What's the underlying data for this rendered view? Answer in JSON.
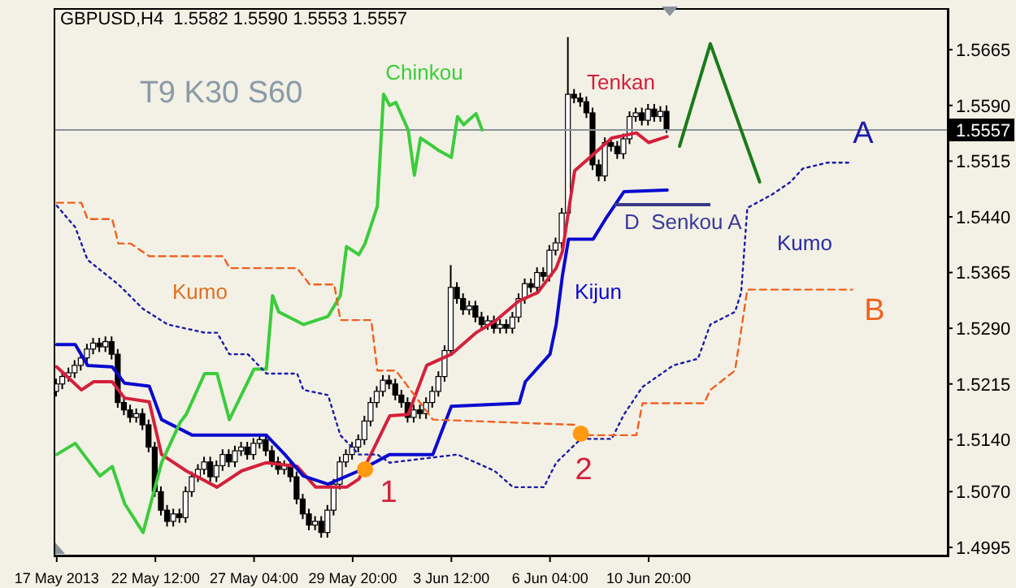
{
  "chart_data": {
    "type": "candlestick",
    "title": "GBPUSD,H4  1.5582 1.5590 1.5553 1.5557",
    "categories": [
      "17 May 2013",
      null,
      null,
      null,
      null,
      null,
      null,
      null,
      null,
      null,
      null,
      null,
      null,
      null,
      null,
      null,
      "22 May 12:00",
      null,
      null,
      null,
      null,
      null,
      null,
      null,
      null,
      null,
      null,
      null,
      null,
      null,
      null,
      null,
      "27 May 04:00",
      null,
      null,
      null,
      null,
      null,
      null,
      null,
      null,
      null,
      null,
      null,
      null,
      null,
      null,
      null,
      "29 May 20:00",
      null,
      null,
      null,
      null,
      null,
      null,
      null,
      null,
      null,
      null,
      null,
      null,
      null,
      null,
      null,
      "3 Jun 12:00",
      null,
      null,
      null,
      null,
      null,
      null,
      null,
      null,
      null,
      null,
      null,
      null,
      null,
      null,
      null,
      "6 Jun 04:00",
      null,
      null,
      null,
      null,
      null,
      null,
      null,
      null,
      null,
      null,
      null,
      null,
      null,
      null,
      null,
      "10 Jun 20:00",
      null,
      null,
      null,
      null,
      null,
      null,
      null,
      null,
      null,
      null,
      null,
      null,
      null,
      null,
      null,
      null,
      null,
      null,
      null,
      null,
      null,
      null,
      null,
      null,
      null,
      null,
      null,
      null,
      null,
      null,
      null,
      null,
      null,
      null,
      null,
      null,
      null,
      null,
      null,
      null,
      null,
      null,
      null,
      null,
      null,
      null,
      null,
      null
    ],
    "ohlc": [
      [
        1.5205,
        1.5222,
        1.5198,
        1.5215
      ],
      [
        1.5215,
        1.5232,
        1.5208,
        1.5225
      ],
      [
        1.5225,
        1.5237,
        1.5218,
        1.523
      ],
      [
        1.523,
        1.5247,
        1.5223,
        1.524
      ],
      [
        1.524,
        1.5257,
        1.5233,
        1.525
      ],
      [
        1.525,
        1.5269,
        1.5243,
        1.5262
      ],
      [
        1.5262,
        1.5277,
        1.5255,
        1.527
      ],
      [
        1.527,
        1.5277,
        1.5258,
        1.5265
      ],
      [
        1.5265,
        1.5279,
        1.5258,
        1.5272
      ],
      [
        1.5272,
        1.5279,
        1.5248,
        1.5255
      ],
      [
        1.5255,
        1.5262,
        1.5183,
        1.519
      ],
      [
        1.519,
        1.5197,
        1.5173,
        1.518
      ],
      [
        1.518,
        1.5187,
        1.5163,
        1.517
      ],
      [
        1.517,
        1.5182,
        1.5163,
        1.5175
      ],
      [
        1.5175,
        1.5182,
        1.5153,
        1.516
      ],
      [
        1.516,
        1.5167,
        1.5123,
        1.513
      ],
      [
        1.513,
        1.5137,
        1.5063,
        1.507
      ],
      [
        1.507,
        1.5077,
        1.5038,
        1.5045
      ],
      [
        1.5045,
        1.5052,
        1.5023,
        1.503
      ],
      [
        1.503,
        1.5047,
        1.5023,
        1.504
      ],
      [
        1.504,
        1.5047,
        1.5028,
        1.5035
      ],
      [
        1.5035,
        1.5077,
        1.5028,
        1.507
      ],
      [
        1.507,
        1.5097,
        1.5063,
        1.509
      ],
      [
        1.509,
        1.5107,
        1.5083,
        1.51
      ],
      [
        1.51,
        1.5117,
        1.5093,
        1.511
      ],
      [
        1.511,
        1.5117,
        1.5083,
        1.509
      ],
      [
        1.509,
        1.5112,
        1.5083,
        1.5105
      ],
      [
        1.5105,
        1.5127,
        1.5098,
        1.512
      ],
      [
        1.512,
        1.5127,
        1.5103,
        1.511
      ],
      [
        1.511,
        1.5132,
        1.5103,
        1.5125
      ],
      [
        1.5125,
        1.5137,
        1.5118,
        1.513
      ],
      [
        1.513,
        1.5137,
        1.5113,
        1.512
      ],
      [
        1.512,
        1.5142,
        1.5113,
        1.5135
      ],
      [
        1.5135,
        1.5147,
        1.5128,
        1.514
      ],
      [
        1.514,
        1.5147,
        1.5118,
        1.5125
      ],
      [
        1.5125,
        1.5132,
        1.5103,
        1.511
      ],
      [
        1.511,
        1.5117,
        1.5093,
        1.51
      ],
      [
        1.51,
        1.5112,
        1.5093,
        1.5105
      ],
      [
        1.5105,
        1.5112,
        1.5083,
        1.509
      ],
      [
        1.509,
        1.5097,
        1.5053,
        1.506
      ],
      [
        1.506,
        1.5067,
        1.5033,
        1.504
      ],
      [
        1.504,
        1.5047,
        1.5018,
        1.5025
      ],
      [
        1.5025,
        1.5037,
        1.5018,
        1.503
      ],
      [
        1.503,
        1.5037,
        1.5008,
        1.5015
      ],
      [
        1.5015,
        1.5052,
        1.5008,
        1.5045
      ],
      [
        1.5045,
        1.5087,
        1.5038,
        1.508
      ],
      [
        1.508,
        1.5117,
        1.5073,
        1.511
      ],
      [
        1.511,
        1.5127,
        1.5103,
        1.512
      ],
      [
        1.512,
        1.5137,
        1.5113,
        1.513
      ],
      [
        1.513,
        1.5147,
        1.5123,
        1.514
      ],
      [
        1.514,
        1.5172,
        1.5133,
        1.5165
      ],
      [
        1.5165,
        1.5197,
        1.5158,
        1.519
      ],
      [
        1.519,
        1.5212,
        1.5183,
        1.5205
      ],
      [
        1.5205,
        1.5227,
        1.5198,
        1.522
      ],
      [
        1.522,
        1.5227,
        1.5208,
        1.5215
      ],
      [
        1.5215,
        1.5222,
        1.5193,
        1.52
      ],
      [
        1.52,
        1.5207,
        1.5183,
        1.519
      ],
      [
        1.519,
        1.5197,
        1.5163,
        1.517
      ],
      [
        1.517,
        1.5187,
        1.5163,
        1.518
      ],
      [
        1.518,
        1.5187,
        1.5168,
        1.5175
      ],
      [
        1.5175,
        1.5197,
        1.5168,
        1.519
      ],
      [
        1.519,
        1.5212,
        1.5183,
        1.5205
      ],
      [
        1.5205,
        1.5232,
        1.5198,
        1.5225
      ],
      [
        1.5225,
        1.5267,
        1.5218,
        1.526
      ],
      [
        1.526,
        1.5375,
        1.5253,
        1.5345
      ],
      [
        1.5345,
        1.5352,
        1.5323,
        1.533
      ],
      [
        1.533,
        1.5337,
        1.5308,
        1.5315
      ],
      [
        1.5315,
        1.5327,
        1.5308,
        1.532
      ],
      [
        1.532,
        1.5327,
        1.5298,
        1.5305
      ],
      [
        1.5305,
        1.5312,
        1.5288,
        1.5295
      ],
      [
        1.5295,
        1.5307,
        1.5288,
        1.53
      ],
      [
        1.53,
        1.5307,
        1.5283,
        1.529
      ],
      [
        1.529,
        1.5302,
        1.5283,
        1.5295
      ],
      [
        1.5295,
        1.5302,
        1.5283,
        1.529
      ],
      [
        1.529,
        1.5312,
        1.5283,
        1.5305
      ],
      [
        1.5305,
        1.5337,
        1.5298,
        1.533
      ],
      [
        1.533,
        1.5357,
        1.5323,
        1.535
      ],
      [
        1.535,
        1.5357,
        1.5338,
        1.5345
      ],
      [
        1.5345,
        1.5372,
        1.5338,
        1.5365
      ],
      [
        1.5365,
        1.5372,
        1.5353,
        1.536
      ],
      [
        1.536,
        1.5402,
        1.5353,
        1.5395
      ],
      [
        1.5395,
        1.5412,
        1.5388,
        1.5405
      ],
      [
        1.5405,
        1.5452,
        1.5398,
        1.5445
      ],
      [
        1.5445,
        1.5682,
        1.5438,
        1.5605
      ],
      [
        1.5605,
        1.5612,
        1.5593,
        1.56
      ],
      [
        1.56,
        1.5607,
        1.5588,
        1.5595
      ],
      [
        1.5595,
        1.5602,
        1.5573,
        1.558
      ],
      [
        1.558,
        1.5587,
        1.5503,
        1.551
      ],
      [
        1.551,
        1.5517,
        1.5488,
        1.5495
      ],
      [
        1.5495,
        1.5547,
        1.5488,
        1.554
      ],
      [
        1.554,
        1.5547,
        1.5528,
        1.5535
      ],
      [
        1.5535,
        1.5542,
        1.5518,
        1.5525
      ],
      [
        1.5525,
        1.5552,
        1.5518,
        1.5545
      ],
      [
        1.5545,
        1.5582,
        1.5538,
        1.5575
      ],
      [
        1.5575,
        1.5587,
        1.5568,
        1.558
      ],
      [
        1.558,
        1.5587,
        1.5563,
        1.557
      ],
      [
        1.557,
        1.5592,
        1.5563,
        1.5585
      ],
      [
        1.5585,
        1.5592,
        1.5568,
        1.5575
      ],
      [
        1.5575,
        1.5589,
        1.5568,
        1.5582
      ],
      [
        1.5582,
        1.559,
        1.5553,
        1.5557
      ],
      null,
      null,
      null,
      null,
      null,
      null,
      null,
      null,
      null,
      null,
      null,
      null,
      null,
      null,
      null,
      null,
      null,
      null,
      null,
      null,
      null,
      null,
      null,
      null,
      null,
      null,
      null,
      null,
      null,
      null,
      null,
      null,
      null,
      null,
      null,
      null,
      null,
      null,
      null,
      null,
      null,
      null,
      null,
      null,
      null
    ],
    "series": [
      {
        "name": "Tenkan",
        "type": "line",
        "color": "#d4203c",
        "values": [
          1.5238,
          null,
          null,
          null,
          1.5207,
          null,
          1.5218,
          null,
          null,
          1.5218,
          null,
          1.5196,
          null,
          null,
          null,
          1.5191,
          null,
          1.512,
          null,
          null,
          null,
          1.5098,
          null,
          null,
          null,
          null,
          1.5076,
          null,
          null,
          null,
          1.5098,
          null,
          null,
          null,
          1.5109,
          null,
          null,
          null,
          null,
          1.5104,
          null,
          null,
          1.5076,
          null,
          null,
          null,
          null,
          1.5076,
          null,
          1.5087,
          null,
          null,
          null,
          null,
          1.5172,
          null,
          null,
          1.5174,
          null,
          null,
          1.524,
          null,
          null,
          null,
          1.5255,
          null,
          null,
          null,
          1.5284,
          null,
          null,
          1.5299,
          null,
          null,
          null,
          1.5327,
          null,
          null,
          1.5338,
          null,
          null,
          1.5371,
          1.5393,
          null,
          1.5502,
          null,
          null,
          1.5524,
          null,
          null,
          1.5546,
          null,
          null,
          null,
          1.5553,
          null,
          1.554,
          null,
          null,
          1.5548,
          null,
          null,
          null,
          null,
          null,
          null,
          null,
          null,
          null,
          null,
          null,
          null,
          null,
          null,
          null,
          null,
          null,
          null,
          null,
          null,
          null,
          null,
          null,
          null,
          null,
          null,
          null,
          null,
          null,
          null,
          null,
          null,
          null,
          null,
          null,
          null,
          null,
          null,
          null,
          null,
          null,
          null,
          null,
          null,
          null
        ]
      },
      {
        "name": "Kijun",
        "type": "line",
        "color": "#0a0ad0",
        "values": [
          1.5268,
          null,
          null,
          1.5268,
          null,
          1.524,
          null,
          null,
          null,
          1.5238,
          null,
          1.5216,
          null,
          null,
          null,
          1.5212,
          null,
          1.5167,
          null,
          null,
          null,
          null,
          1.5146,
          null,
          null,
          null,
          null,
          null,
          null,
          null,
          null,
          null,
          null,
          null,
          1.5146,
          null,
          null,
          1.512,
          null,
          null,
          1.5091,
          null,
          null,
          null,
          1.508,
          null,
          null,
          null,
          null,
          1.5098,
          null,
          null,
          null,
          null,
          1.512,
          null,
          null,
          null,
          null,
          null,
          null,
          1.512,
          null,
          null,
          1.5185,
          null,
          null,
          null,
          null,
          null,
          null,
          null,
          null,
          null,
          null,
          1.5189,
          1.5218,
          null,
          null,
          null,
          1.5255,
          1.5295,
          1.536,
          1.541,
          null,
          null,
          null,
          1.541,
          null,
          1.5437,
          null,
          null,
          1.5474,
          null,
          null,
          null,
          null,
          null,
          null,
          1.5476,
          null,
          null,
          null,
          null,
          null,
          null,
          null,
          null,
          null,
          null,
          null,
          null,
          null,
          null,
          null,
          null,
          null,
          null,
          null,
          null,
          null,
          null,
          null,
          null,
          null,
          null,
          null,
          null,
          null,
          null,
          null,
          null,
          null,
          null,
          null,
          null,
          null,
          null,
          null,
          null,
          null,
          null,
          null,
          null,
          null
        ]
      },
      {
        "name": "Chinkou",
        "type": "line",
        "color": "#3ccc3c",
        "values": [
          1.512,
          null,
          null,
          1.5135,
          null,
          null,
          null,
          1.5091,
          null,
          1.5104,
          null,
          1.5054,
          null,
          null,
          1.5015,
          null,
          null,
          1.5109,
          null,
          null,
          1.5163,
          1.5174,
          null,
          null,
          1.5229,
          null,
          1.5229,
          null,
          1.5167,
          null,
          null,
          null,
          1.5235,
          null,
          1.5235,
          1.5334,
          1.5312,
          null,
          null,
          null,
          1.5295,
          null,
          null,
          null,
          1.5306,
          null,
          1.5334,
          1.54,
          null,
          1.5389,
          1.5404,
          null,
          1.5454,
          1.5605,
          1.559,
          1.5594,
          null,
          1.5557,
          1.5496,
          1.5546,
          null,
          1.5535,
          1.5529,
          null,
          1.552,
          1.5575,
          1.5564,
          null,
          1.5579,
          1.5557,
          null,
          null,
          null,
          null,
          null,
          null,
          null,
          null,
          null,
          null,
          null,
          null,
          null,
          null,
          null,
          null,
          null,
          null,
          null,
          null,
          null,
          null,
          null,
          null,
          null,
          null,
          null,
          null,
          null,
          null,
          null,
          null,
          null,
          null,
          null,
          null,
          null,
          null,
          null,
          null,
          null,
          null,
          null,
          null,
          null,
          null,
          null,
          null,
          null,
          null,
          null,
          null,
          null,
          null,
          null,
          null,
          null,
          null,
          null,
          null,
          null,
          null,
          null,
          null,
          null,
          null,
          null,
          null,
          null,
          null,
          null,
          null,
          null,
          null,
          null
        ]
      },
      {
        "name": "A",
        "type": "line",
        "line_style": "dotted",
        "color": "#1a1aa8",
        "values": [
          1.5455,
          null,
          null,
          1.5426,
          null,
          1.5382,
          null,
          null,
          null,
          null,
          1.5349,
          null,
          null,
          null,
          1.5316,
          null,
          null,
          null,
          1.5295,
          null,
          null,
          null,
          null,
          null,
          1.5284,
          null,
          1.5284,
          null,
          1.5255,
          null,
          null,
          1.5255,
          null,
          null,
          1.5229,
          null,
          null,
          null,
          null,
          1.5229,
          1.5207,
          null,
          null,
          null,
          1.52,
          null,
          1.5146,
          null,
          null,
          1.512,
          null,
          null,
          1.512,
          null,
          1.5109,
          null,
          null,
          null,
          null,
          null,
          1.5115,
          null,
          null,
          null,
          null,
          1.512,
          null,
          null,
          null,
          null,
          null,
          1.5098,
          null,
          null,
          1.5076,
          null,
          null,
          null,
          null,
          1.5076,
          null,
          1.5109,
          null,
          null,
          null,
          1.5141,
          null,
          null,
          null,
          null,
          1.5141,
          null,
          1.5174,
          null,
          null,
          1.5211,
          null,
          null,
          null,
          null,
          1.524,
          null,
          null,
          null,
          1.5249,
          null,
          1.5295,
          null,
          null,
          null,
          1.5312,
          1.5338,
          1.5452,
          null,
          null,
          null,
          1.547,
          null,
          null,
          1.5487,
          null,
          1.5505,
          null,
          null,
          null,
          1.5513,
          null,
          null,
          null,
          1.5513,
          null,
          null,
          null,
          null,
          null,
          null,
          null,
          null,
          null,
          null,
          null,
          null,
          null,
          null,
          null
        ]
      },
      {
        "name": "B",
        "type": "line",
        "line_style": "dashed",
        "color": "#f06020",
        "values": [
          1.5459,
          null,
          null,
          null,
          1.5459,
          1.5437,
          null,
          null,
          null,
          1.5437,
          1.5404,
          null,
          1.5404,
          null,
          null,
          1.5387,
          null,
          null,
          null,
          null,
          null,
          null,
          null,
          null,
          null,
          null,
          null,
          1.5387,
          1.5371,
          null,
          null,
          null,
          null,
          null,
          null,
          null,
          null,
          null,
          null,
          1.5371,
          null,
          1.5349,
          null,
          null,
          null,
          1.5349,
          1.5301,
          null,
          null,
          null,
          null,
          1.5301,
          1.5233,
          null,
          null,
          1.5233,
          null,
          null,
          null,
          null,
          null,
          1.5167,
          null,
          null,
          null,
          null,
          null,
          null,
          null,
          null,
          null,
          null,
          null,
          null,
          null,
          null,
          null,
          null,
          null,
          null,
          null,
          null,
          null,
          null,
          1.516,
          null,
          1.5146,
          null,
          null,
          null,
          null,
          null,
          null,
          null,
          1.5146,
          1.5189,
          null,
          null,
          null,
          null,
          null,
          null,
          null,
          null,
          null,
          1.5189,
          1.5207,
          null,
          null,
          null,
          1.5233,
          null,
          1.5342,
          null,
          null,
          null,
          null,
          null,
          null,
          null,
          null,
          null,
          null,
          null,
          null,
          null,
          null,
          null,
          null,
          1.5342,
          null,
          null,
          null,
          null,
          null,
          null,
          null,
          null,
          null,
          null,
          null,
          null,
          null,
          null,
          null
        ]
      },
      {
        "type": "line",
        "color": "#1a7a1a",
        "values": [
          null,
          null,
          null,
          null,
          null,
          null,
          null,
          null,
          null,
          null,
          null,
          null,
          null,
          null,
          null,
          null,
          null,
          null,
          null,
          null,
          null,
          null,
          null,
          null,
          null,
          null,
          null,
          null,
          null,
          null,
          null,
          null,
          null,
          null,
          null,
          null,
          null,
          null,
          null,
          null,
          null,
          null,
          null,
          null,
          null,
          null,
          null,
          null,
          null,
          null,
          null,
          null,
          null,
          null,
          null,
          null,
          null,
          null,
          null,
          null,
          null,
          null,
          null,
          null,
          null,
          null,
          null,
          null,
          null,
          null,
          null,
          null,
          null,
          null,
          null,
          null,
          null,
          null,
          null,
          null,
          null,
          null,
          null,
          null,
          null,
          null,
          null,
          null,
          null,
          null,
          null,
          null,
          null,
          null,
          null,
          null,
          null,
          null,
          null,
          null,
          null,
          1.5535,
          null,
          null,
          null,
          null,
          1.5673,
          null,
          null,
          null,
          null,
          null,
          null,
          null,
          1.5487,
          null,
          null,
          null,
          null,
          null,
          null,
          null,
          null,
          null,
          null,
          null,
          null,
          null,
          null,
          null,
          null,
          null,
          null,
          null,
          null,
          null,
          null,
          null,
          null,
          null,
          null,
          null,
          null,
          null,
          null
        ]
      },
      {
        "type": "scatter",
        "color": "#ff9a10",
        "values": [
          null,
          null,
          null,
          null,
          null,
          null,
          null,
          null,
          null,
          null,
          null,
          null,
          null,
          null,
          null,
          null,
          null,
          null,
          null,
          null,
          null,
          null,
          null,
          null,
          null,
          null,
          null,
          null,
          null,
          null,
          null,
          null,
          null,
          null,
          null,
          null,
          null,
          null,
          null,
          null,
          null,
          null,
          null,
          null,
          null,
          null,
          null,
          null,
          null,
          null,
          1.51,
          null,
          null,
          null,
          null,
          null,
          null,
          null,
          null,
          null,
          null,
          null,
          null,
          null,
          null,
          null,
          null,
          null,
          null,
          null,
          null,
          null,
          null,
          null,
          null,
          null,
          null,
          null,
          null,
          null,
          null,
          null,
          null,
          null,
          null,
          1.5148,
          null,
          null,
          null,
          null,
          null,
          null,
          null,
          null,
          null,
          null,
          null,
          null,
          null,
          null,
          null,
          null,
          null,
          null,
          null,
          null,
          null,
          null,
          null,
          null,
          null,
          null,
          null,
          null,
          null,
          null,
          null,
          null,
          null,
          null,
          null,
          null,
          null,
          null,
          null,
          null,
          null,
          null,
          null,
          null,
          null,
          null,
          null,
          null,
          null,
          null,
          null,
          null,
          null,
          null,
          null,
          null,
          null,
          null,
          null
        ]
      }
    ],
    "annotations": [
      "T9 K30 S60",
      "Kumo",
      "Kumo",
      "D  Senkou A",
      "1",
      "2"
    ],
    "ref_lines": [
      {
        "axis": "y",
        "value": 1.5557,
        "label": "1.5557",
        "color": "#8a9299"
      }
    ],
    "ylim": [
      1.4984,
      1.5721
    ],
    "yticks": [
      1.5665,
      {
        "value": 1.559,
        "label": "1.5590"
      },
      1.5515,
      {
        "value": 1.544,
        "label": "1.5440"
      },
      1.5365,
      {
        "value": 1.529,
        "label": "1.5290"
      },
      1.5215,
      {
        "value": 1.514,
        "label": "1.5140"
      },
      {
        "value": 1.507,
        "label": "1.5070"
      },
      1.4995
    ]
  }
}
